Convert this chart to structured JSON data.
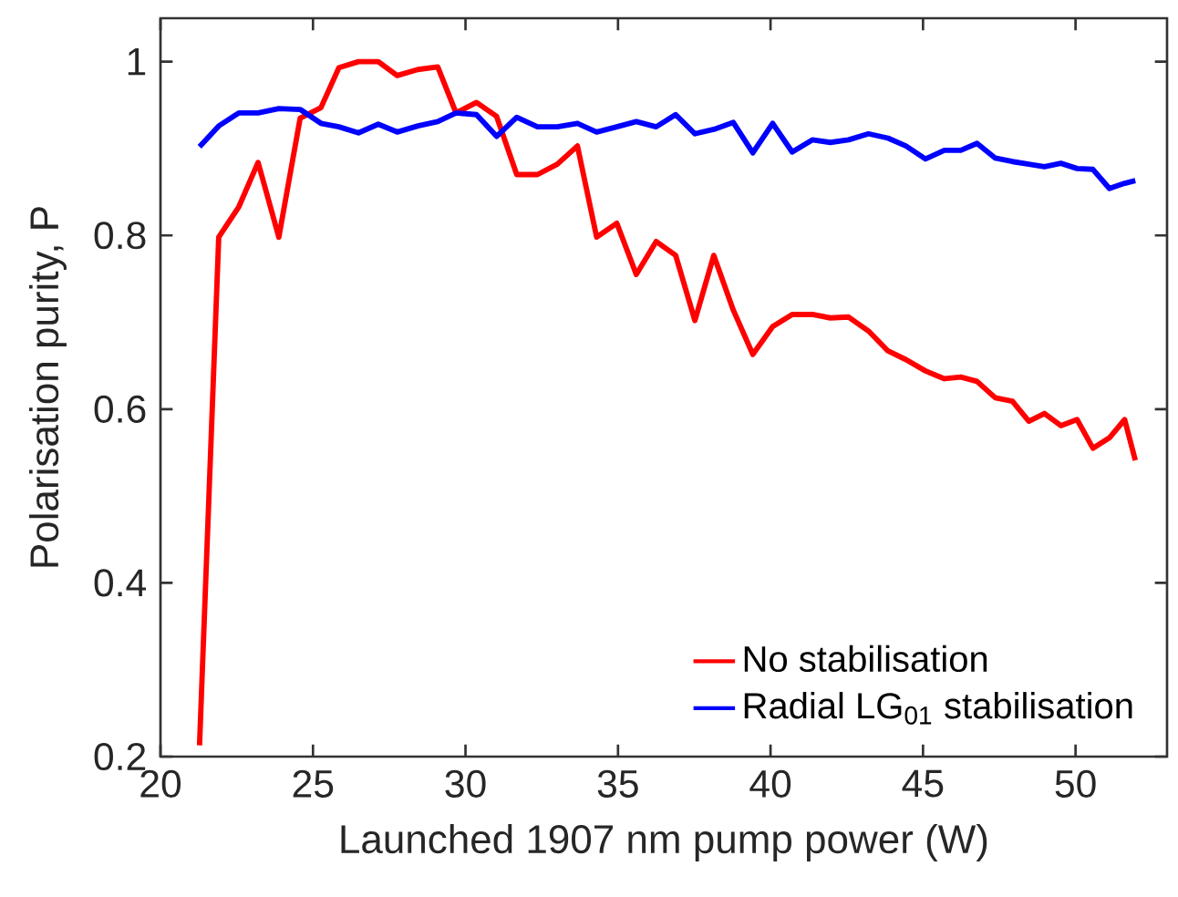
{
  "chart_data": {
    "type": "line",
    "xlabel": "Launched 1907 nm pump power (W)",
    "ylabel": "Polarisation purity, P",
    "x": [
      21.28,
      21.91,
      22.57,
      23.2,
      23.88,
      24.58,
      25.26,
      25.85,
      26.49,
      27.14,
      27.76,
      28.44,
      29.09,
      29.69,
      30.36,
      31.02,
      31.68,
      32.36,
      33.01,
      33.67,
      34.3,
      34.96,
      35.6,
      36.25,
      36.89,
      37.52,
      38.14,
      38.78,
      39.42,
      40.07,
      40.71,
      41.37,
      41.96,
      42.56,
      43.21,
      43.85,
      44.44,
      45.08,
      45.7,
      46.24,
      46.77,
      47.37,
      47.93,
      48.47,
      48.98,
      49.52,
      50.05,
      50.57,
      51.11,
      51.61,
      51.96
    ],
    "series": [
      {
        "name": "No stabilisation",
        "color": "#ff0000",
        "values": [
          0.213,
          0.798,
          0.833,
          0.884,
          0.798,
          0.935,
          0.947,
          0.993,
          1.0,
          1.0,
          0.984,
          0.991,
          0.994,
          0.941,
          0.953,
          0.937,
          0.87,
          0.87,
          0.882,
          0.903,
          0.798,
          0.814,
          0.755,
          0.793,
          0.777,
          0.702,
          0.777,
          0.714,
          0.663,
          0.695,
          0.709,
          0.709,
          0.705,
          0.706,
          0.69,
          0.667,
          0.657,
          0.644,
          0.635,
          0.637,
          0.632,
          0.613,
          0.609,
          0.586,
          0.595,
          0.581,
          0.588,
          0.555,
          0.567,
          0.588,
          0.541
        ]
      },
      {
        "name": "Radial LG$_{01}$ stabilisation",
        "color": "#0000ff",
        "values": [
          0.902,
          0.926,
          0.941,
          0.941,
          0.946,
          0.945,
          0.929,
          0.925,
          0.918,
          0.928,
          0.919,
          0.926,
          0.931,
          0.941,
          0.939,
          0.914,
          0.936,
          0.925,
          0.925,
          0.929,
          0.919,
          0.925,
          0.931,
          0.925,
          0.939,
          0.917,
          0.922,
          0.93,
          0.895,
          0.929,
          0.896,
          0.91,
          0.907,
          0.91,
          0.917,
          0.912,
          0.903,
          0.888,
          0.898,
          0.898,
          0.906,
          0.889,
          0.885,
          0.882,
          0.879,
          0.883,
          0.877,
          0.876,
          0.854,
          0.86,
          0.863
        ]
      }
    ],
    "xlim": [
      20,
      53
    ],
    "ylim": [
      0.2,
      1.05
    ],
    "xticks": [
      20,
      25,
      30,
      35,
      40,
      45,
      50
    ],
    "yticks": [
      {
        "value": 0.2,
        "label": "0.2"
      },
      {
        "value": 0.4,
        "label": "0.4"
      },
      {
        "value": 0.6,
        "label": "0.6"
      },
      {
        "value": 0.8,
        "label": "0.8"
      },
      {
        "value": 1,
        "label": "1"
      }
    ],
    "legend": "bottom right",
    "grid": false,
    "marker": "none",
    "line_style": "solid"
  }
}
